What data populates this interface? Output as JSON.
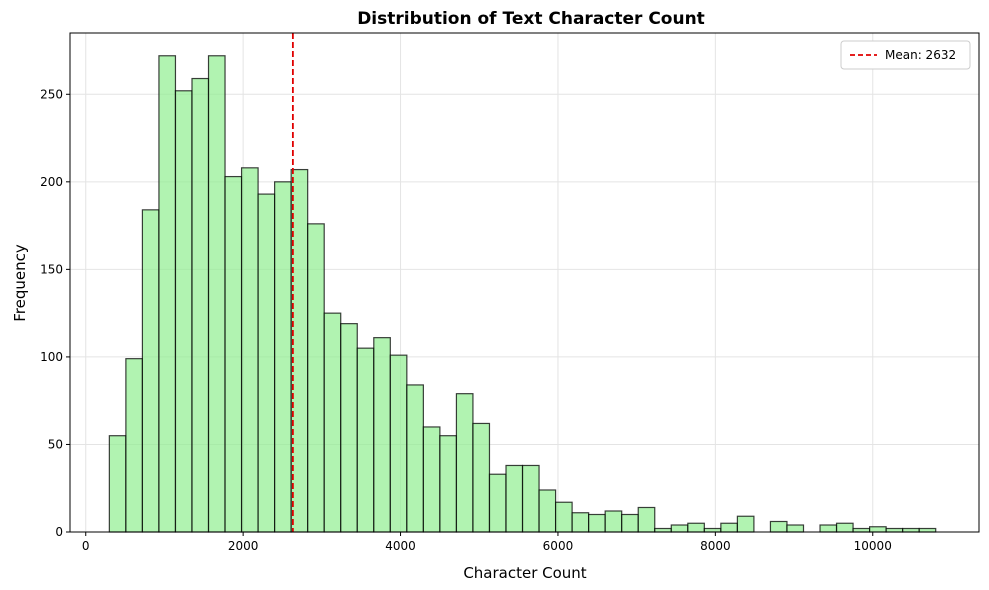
{
  "chart_data": {
    "type": "histogram",
    "title": "Distribution of Text Character Count",
    "xlabel": "Character Count",
    "ylabel": "Frequency",
    "xlim": [
      -200,
      11350
    ],
    "ylim": [
      0,
      285
    ],
    "xticks": [
      0,
      2000,
      4000,
      6000,
      8000,
      10000
    ],
    "yticks": [
      0,
      50,
      100,
      150,
      200,
      250
    ],
    "grid": true,
    "bar_color": "#90ee90",
    "bar_edge_color": "#000000",
    "bin_start": 300,
    "bin_width": 210,
    "counts": [
      55,
      99,
      184,
      272,
      252,
      259,
      272,
      203,
      208,
      193,
      200,
      207,
      176,
      125,
      119,
      105,
      111,
      101,
      84,
      60,
      55,
      79,
      62,
      33,
      38,
      38,
      24,
      17,
      11,
      10,
      12,
      10,
      14,
      2,
      4,
      5,
      2,
      5,
      9,
      0,
      6,
      4,
      0,
      4,
      5,
      2,
      3,
      2,
      2,
      2
    ],
    "mean_line": {
      "value": 2632,
      "label": "Mean: 2632",
      "color": "#e00000",
      "style": "dashed"
    },
    "legend": {
      "position": "top-right",
      "entries": [
        "Mean: 2632"
      ]
    }
  }
}
